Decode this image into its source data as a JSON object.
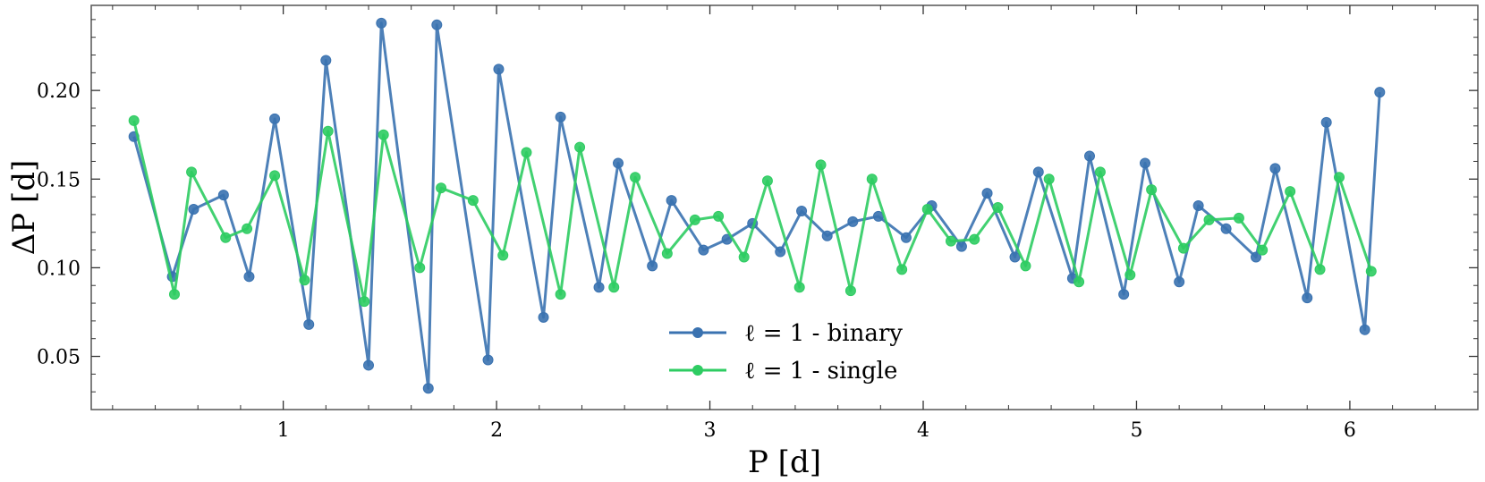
{
  "chart_data": {
    "type": "line",
    "xlabel": "P [d]",
    "ylabel": "ΔP [d]",
    "xlim": [
      0.1,
      6.6
    ],
    "ylim": [
      0.02,
      0.248
    ],
    "x_ticks": [
      1,
      2,
      3,
      4,
      5,
      6
    ],
    "x_tick_labels": [
      "1",
      "2",
      "3",
      "4",
      "5",
      "6"
    ],
    "y_ticks": [
      0.05,
      0.1,
      0.15,
      0.2
    ],
    "y_tick_labels": [
      "0.05",
      "0.10",
      "0.15",
      "0.20"
    ],
    "legend_position": "bottom-center",
    "series": [
      {
        "name": "ℓ = 1 - binary",
        "color": "#3a72b0",
        "x": [
          0.3,
          0.48,
          0.58,
          0.72,
          0.84,
          0.96,
          1.12,
          1.2,
          1.4,
          1.46,
          1.68,
          1.72,
          1.96,
          2.01,
          2.22,
          2.3,
          2.48,
          2.57,
          2.73,
          2.82,
          2.97,
          3.08,
          3.2,
          3.33,
          3.43,
          3.55,
          3.67,
          3.79,
          3.92,
          4.04,
          4.18,
          4.3,
          4.43,
          4.54,
          4.7,
          4.78,
          4.94,
          5.04,
          5.2,
          5.29,
          5.42,
          5.56,
          5.65,
          5.8,
          5.89,
          6.07,
          6.14
        ],
        "values": [
          0.174,
          0.095,
          0.133,
          0.141,
          0.095,
          0.184,
          0.068,
          0.217,
          0.045,
          0.238,
          0.032,
          0.237,
          0.048,
          0.212,
          0.072,
          0.185,
          0.089,
          0.159,
          0.101,
          0.138,
          0.11,
          0.116,
          0.125,
          0.109,
          0.132,
          0.118,
          0.126,
          0.129,
          0.117,
          0.135,
          0.112,
          0.142,
          0.106,
          0.154,
          0.094,
          0.163,
          0.085,
          0.159,
          0.092,
          0.135,
          0.122,
          0.106,
          0.156,
          0.083,
          0.182,
          0.065,
          0.199
        ]
      },
      {
        "name": "ℓ = 1 - single",
        "color": "#2ecc62",
        "x": [
          0.3,
          0.49,
          0.57,
          0.73,
          0.83,
          0.96,
          1.1,
          1.21,
          1.38,
          1.47,
          1.64,
          1.74,
          1.89,
          2.03,
          2.14,
          2.3,
          2.39,
          2.55,
          2.65,
          2.8,
          2.93,
          3.04,
          3.16,
          3.27,
          3.42,
          3.52,
          3.66,
          3.76,
          3.9,
          4.02,
          4.13,
          4.24,
          4.35,
          4.48,
          4.59,
          4.73,
          4.83,
          4.97,
          5.07,
          5.22,
          5.34,
          5.48,
          5.59,
          5.72,
          5.86,
          5.95,
          6.1
        ],
        "values": [
          0.183,
          0.085,
          0.154,
          0.117,
          0.122,
          0.152,
          0.093,
          0.177,
          0.081,
          0.175,
          0.1,
          0.145,
          0.138,
          0.107,
          0.165,
          0.085,
          0.168,
          0.089,
          0.151,
          0.108,
          0.127,
          0.129,
          0.106,
          0.149,
          0.089,
          0.158,
          0.087,
          0.15,
          0.099,
          0.133,
          0.115,
          0.116,
          0.134,
          0.101,
          0.15,
          0.092,
          0.154,
          0.096,
          0.144,
          0.111,
          0.127,
          0.128,
          0.11,
          0.143,
          0.099,
          0.151,
          0.098
        ]
      }
    ]
  }
}
